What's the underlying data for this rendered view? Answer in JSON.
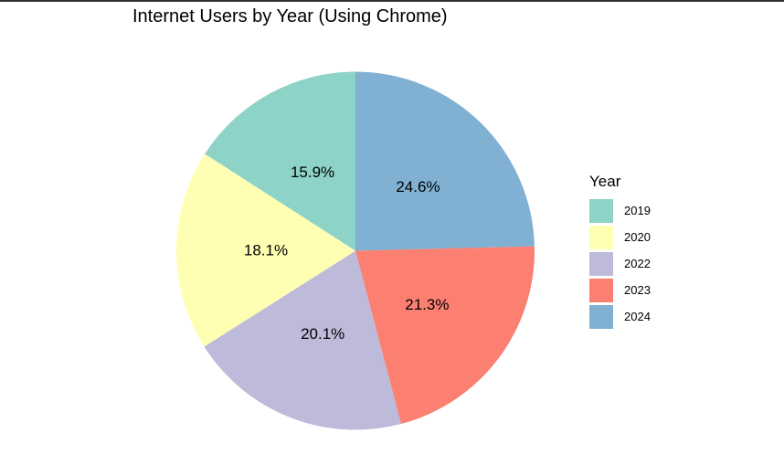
{
  "chart_data": {
    "type": "pie",
    "title": "Internet Users by Year (Using Chrome)",
    "legend_title": "Year",
    "legend_position": "right",
    "slices": [
      {
        "category": "2019",
        "value": 15.9,
        "label": "15.9%",
        "color": "#8DD3C7"
      },
      {
        "category": "2020",
        "value": 18.1,
        "label": "18.1%",
        "color": "#FFFFB3"
      },
      {
        "category": "2022",
        "value": 20.1,
        "label": "20.1%",
        "color": "#BEBADA"
      },
      {
        "category": "2023",
        "value": 21.3,
        "label": "21.3%",
        "color": "#FB8072"
      },
      {
        "category": "2024",
        "value": 24.6,
        "label": "24.6%",
        "color": "#80B1D3"
      }
    ]
  }
}
